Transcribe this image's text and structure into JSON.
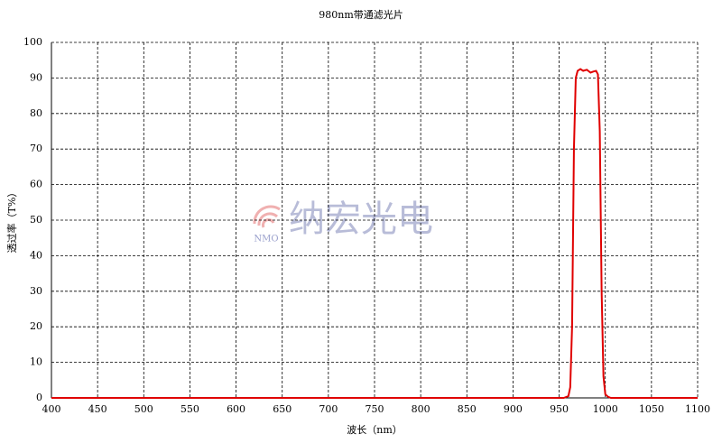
{
  "chart_data": {
    "type": "line",
    "title": "980nm带通滤光片",
    "x_label": "波长（nm）",
    "y_label": "透过率（T%）",
    "x": [
      400,
      900,
      955,
      960,
      962,
      964,
      966,
      968,
      970,
      973,
      976,
      980,
      984,
      987,
      990,
      992,
      994,
      996,
      998,
      1000,
      1003,
      1006,
      1100
    ],
    "series": [
      {
        "color": "#e00000",
        "values": [
          0,
          0,
          0,
          0.5,
          3,
          20,
          70,
          90,
          92,
          92.5,
          92,
          92.3,
          91.5,
          91.8,
          92,
          91,
          75,
          30,
          6,
          1,
          0.3,
          0,
          0
        ]
      }
    ],
    "xlim": [
      400,
      1100
    ],
    "xticks": [
      400,
      450,
      500,
      550,
      600,
      650,
      700,
      750,
      800,
      850,
      900,
      950,
      1000,
      1050,
      1100
    ],
    "ylim": [
      0,
      100
    ],
    "yticks": [
      0,
      10,
      20,
      30,
      40,
      50,
      60,
      70,
      80,
      90,
      100
    ],
    "grid": true,
    "watermark": {
      "text": "纳宏光电",
      "logo_text": "NMO"
    }
  }
}
